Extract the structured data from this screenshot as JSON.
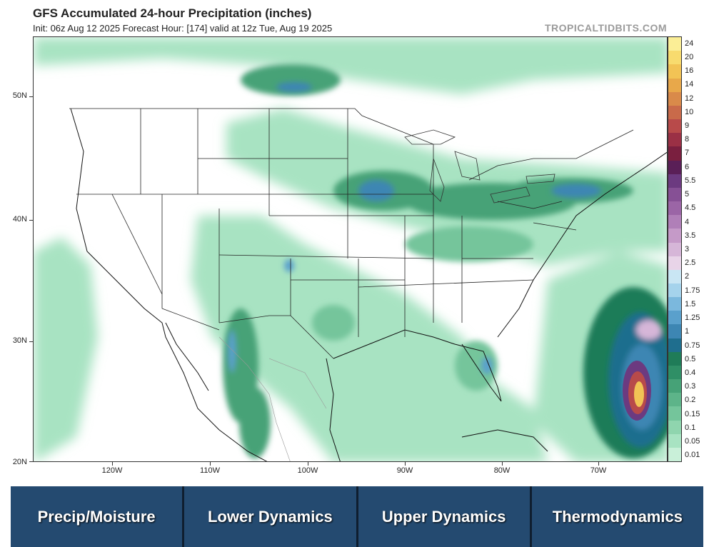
{
  "header": {
    "title": "GFS Accumulated 24-hour Precipitation (inches)",
    "subtitle": "Init: 06z Aug 12 2025   Forecast Hour: [174]   valid at 12z Tue, Aug 19 2025",
    "brand": "TROPICALTIDBITS.COM"
  },
  "map": {
    "lat_labels": [
      "50N",
      "40N",
      "30N",
      "20N"
    ],
    "lon_labels": [
      "120W",
      "110W",
      "100W",
      "90W",
      "80W",
      "70W"
    ]
  },
  "colorbar": {
    "labels": [
      "0.01",
      "0.05",
      "0.1",
      "0.15",
      "0.2",
      "0.3",
      "0.4",
      "0.5",
      "0.75",
      "1",
      "1.25",
      "1.5",
      "1.75",
      "2",
      "2.5",
      "3",
      "3.5",
      "4",
      "4.5",
      "5",
      "5.5",
      "6",
      "7",
      "8",
      "9",
      "10",
      "12",
      "14",
      "16",
      "20",
      "24"
    ],
    "colors": [
      "#c9f0d9",
      "#a8e3c2",
      "#8fd5ae",
      "#74c59b",
      "#5db489",
      "#46a277",
      "#2f8f66",
      "#1f7c58",
      "#1f6e8e",
      "#3d86b3",
      "#5aa0cc",
      "#7bb8dd",
      "#a5d3ec",
      "#c9e6f4",
      "#e8d4e8",
      "#d6b6d8",
      "#c59ac8",
      "#b07fb8",
      "#9b65a6",
      "#865095",
      "#6c3a80",
      "#5a1f57",
      "#7a1f3f",
      "#9b3045",
      "#b84a4a",
      "#c96a4a",
      "#d98a4a",
      "#e8a84a",
      "#f2c355",
      "#f8db6e",
      "#fbee96"
    ]
  },
  "nav": {
    "items": [
      "Precip/Moisture",
      "Lower Dynamics",
      "Upper Dynamics",
      "Thermodynamics"
    ]
  }
}
